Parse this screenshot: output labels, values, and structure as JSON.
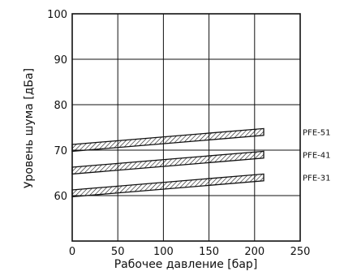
{
  "chart_data": {
    "type": "line",
    "xlabel": "Рабочее давление [бар]",
    "ylabel": "Уровень шума [дБа]",
    "xlim": [
      0,
      250
    ],
    "ylim": [
      50,
      100
    ],
    "xticks": [
      "0",
      "50",
      "100",
      "150",
      "200",
      "250"
    ],
    "yticks": [
      "60",
      "70",
      "80",
      "90",
      "100"
    ],
    "grid": true,
    "band_width_db": 1.5,
    "series": [
      {
        "name": "PFE-51",
        "x": [
          0,
          210
        ],
        "y": [
          70.5,
          74
        ]
      },
      {
        "name": "PFE-41",
        "x": [
          0,
          210
        ],
        "y": [
          65.5,
          69
        ]
      },
      {
        "name": "PFE-31",
        "x": [
          0,
          210
        ],
        "y": [
          60.5,
          64
        ]
      }
    ]
  }
}
